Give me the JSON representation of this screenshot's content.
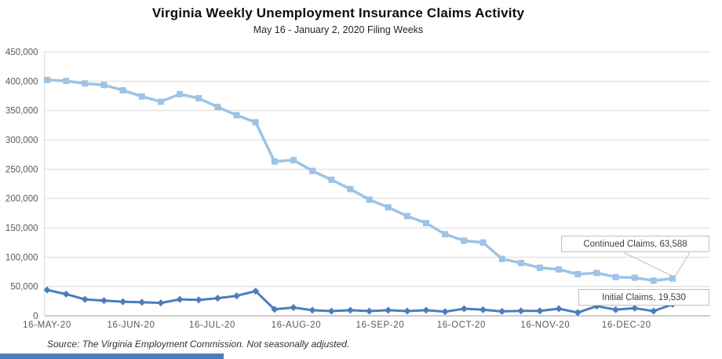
{
  "source_note": "Source: The Virginia Employment Commission. Not seasonally adjusted.",
  "colors": {
    "continued_series": "#9dc3e6",
    "initial_series": "#4a7ebb",
    "gridline": "#d9d9d9",
    "axis_line": "#9b9b9b",
    "axis_text": "#595959",
    "callout_border": "#bfbfbf",
    "leader_line": "#bfbfbf",
    "bottom_strip": "#4a7ebb"
  },
  "chart_data": {
    "type": "line",
    "title": "Virginia Weekly Unemployment Insurance Claims Activity",
    "subtitle": "May 16 - January 2, 2020 Filing Weeks",
    "x": [
      "16-May-20",
      "23-May-20",
      "30-May-20",
      "6-Jun-20",
      "13-Jun-20",
      "20-Jun-20",
      "27-Jun-20",
      "4-Jul-20",
      "11-Jul-20",
      "18-Jul-20",
      "25-Jul-20",
      "1-Aug-20",
      "8-Aug-20",
      "15-Aug-20",
      "22-Aug-20",
      "29-Aug-20",
      "5-Sep-20",
      "12-Sep-20",
      "19-Sep-20",
      "26-Sep-20",
      "3-Oct-20",
      "10-Oct-20",
      "17-Oct-20",
      "24-Oct-20",
      "31-Oct-20",
      "7-Nov-20",
      "14-Nov-20",
      "21-Nov-20",
      "28-Nov-20",
      "5-Dec-20",
      "12-Dec-20",
      "19-Dec-20",
      "26-Dec-20",
      "2-Jan-21"
    ],
    "series": [
      {
        "name": "Continued Claims",
        "color": "#9dc3e6",
        "marker": "square",
        "values": [
          402000,
          400500,
          396000,
          393500,
          384500,
          374000,
          365000,
          378000,
          371000,
          356000,
          342000,
          330000,
          263000,
          265500,
          247000,
          232000,
          216000,
          198000,
          185000,
          170000,
          158000,
          139000,
          128000,
          125000,
          97000,
          90000,
          82000,
          79000,
          71000,
          73000,
          66000,
          65000,
          60000,
          63588
        ],
        "end_value": 63588,
        "end_label": "Continued Claims, 63,588"
      },
      {
        "name": "Initial Claims",
        "color": "#4a7ebb",
        "marker": "diamond",
        "values": [
          44000,
          37000,
          28000,
          26000,
          24000,
          23000,
          22000,
          28000,
          27000,
          30000,
          34000,
          42000,
          11000,
          14000,
          9500,
          8000,
          9500,
          8000,
          9500,
          8000,
          9500,
          7000,
          12000,
          10500,
          7500,
          8500,
          8500,
          12000,
          5500,
          16500,
          10500,
          13000,
          8000,
          19530
        ],
        "end_value": 19530,
        "end_label": "Initial Claims, 19,530"
      }
    ],
    "x_ticks": {
      "labels": [
        "16-MAY-20",
        "16-JUN-20",
        "16-JUL-20",
        "16-AUG-20",
        "16-SEP-20",
        "16-OCT-20",
        "16-NOV-20",
        "16-DEC-20"
      ],
      "day_offsets": [
        0,
        31,
        61,
        92,
        123,
        153,
        184,
        214
      ]
    },
    "y_axis": {
      "min": 0,
      "max": 450000,
      "step": 50000,
      "tick_labels": [
        "450,000",
        "400,000",
        "350,000",
        "300,000",
        "250,000",
        "200,000",
        "150,000",
        "100,000",
        "50,000",
        "0"
      ]
    },
    "grid": true,
    "legend_position": "none (series labeled via end callouts)"
  }
}
